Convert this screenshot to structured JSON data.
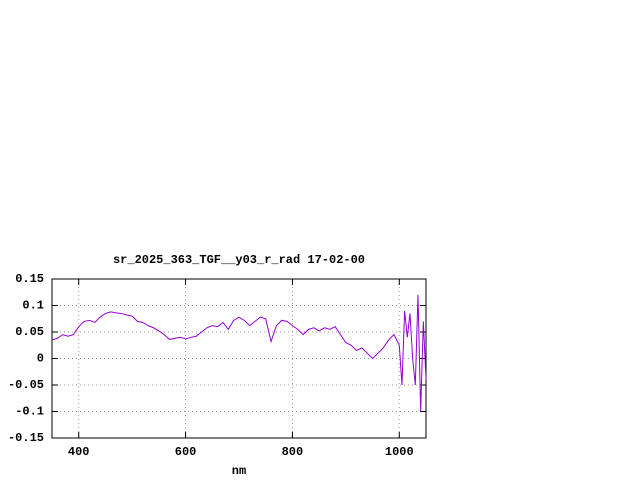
{
  "chart_data": {
    "type": "line",
    "title": "sr_2025_363_TGF__y03_r_rad 17-02-00",
    "xlabel": "nm",
    "x": [
      350,
      360,
      370,
      380,
      390,
      400,
      410,
      420,
      430,
      440,
      450,
      460,
      470,
      480,
      490,
      500,
      510,
      520,
      530,
      540,
      550,
      560,
      570,
      580,
      590,
      600,
      610,
      620,
      630,
      640,
      650,
      660,
      670,
      680,
      690,
      700,
      710,
      720,
      730,
      740,
      750,
      760,
      770,
      780,
      790,
      800,
      810,
      820,
      830,
      840,
      850,
      860,
      870,
      880,
      890,
      900,
      910,
      920,
      930,
      940,
      950,
      960,
      970,
      980,
      990,
      1000,
      1005,
      1010,
      1015,
      1020,
      1025,
      1030,
      1035,
      1040,
      1045,
      1050
    ],
    "series": [
      {
        "color": "#9400d3",
        "values": [
          0.035,
          0.038,
          0.045,
          0.042,
          0.045,
          0.06,
          0.07,
          0.072,
          0.068,
          0.078,
          0.085,
          0.088,
          0.086,
          0.085,
          0.082,
          0.08,
          0.07,
          0.068,
          0.062,
          0.058,
          0.052,
          0.045,
          0.036,
          0.038,
          0.04,
          0.037,
          0.04,
          0.042,
          0.05,
          0.058,
          0.062,
          0.06,
          0.068,
          0.055,
          0.072,
          0.078,
          0.072,
          0.062,
          0.07,
          0.078,
          0.075,
          0.032,
          0.062,
          0.072,
          0.07,
          0.062,
          0.055,
          0.045,
          0.055,
          0.058,
          0.052,
          0.058,
          0.055,
          0.06,
          0.045,
          0.03,
          0.025,
          0.015,
          0.02,
          0.01,
          0.0,
          0.01,
          0.02,
          0.035,
          0.045,
          0.025,
          -0.05,
          0.09,
          0.04,
          0.085,
          0.0,
          -0.05,
          0.12,
          -0.1,
          0.07,
          -0.04
        ]
      }
    ],
    "xlim": [
      350,
      1050
    ],
    "xticks": [
      400,
      600,
      800,
      1000
    ],
    "ylim": [
      -0.15,
      0.15
    ],
    "yticks": [
      0.15,
      0.1,
      0.05,
      0,
      -0.05,
      -0.1,
      -0.15
    ],
    "grid": true
  }
}
